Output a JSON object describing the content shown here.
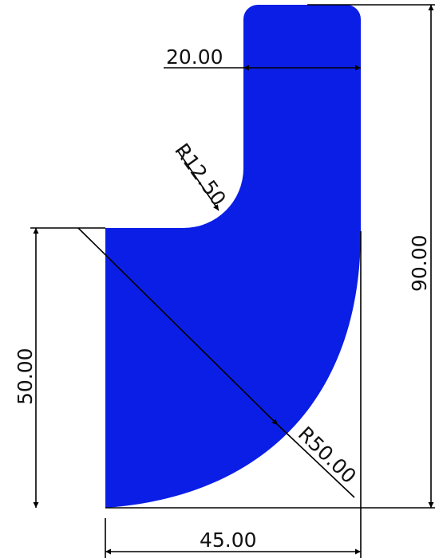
{
  "drawing": {
    "part_color": "#0a1ee6",
    "line_color": "#000000",
    "dimensions": {
      "top_width": "20.00",
      "inner_radius": "R12.50",
      "total_height": "90.00",
      "left_height": "50.00",
      "outer_radius": "R50.00",
      "bottom_width": "45.00"
    }
  }
}
